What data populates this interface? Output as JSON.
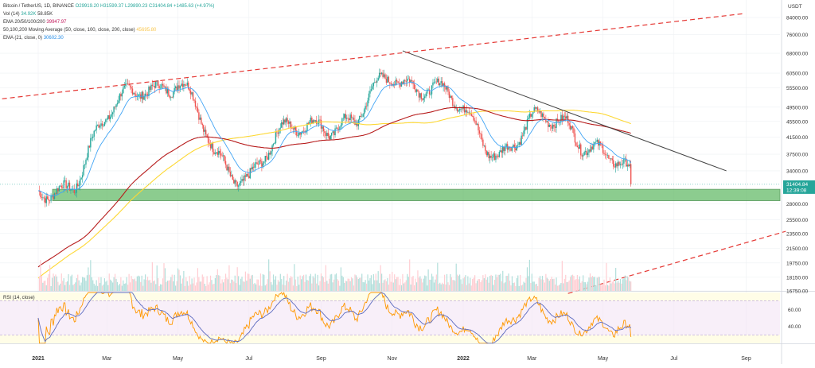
{
  "header": {
    "symbol_line": "Bitcoin / TetherUS, 1D, BINANCE",
    "ohlc": "O29919.20 H31599.37 L29890.23 C31404.84 +1485.63 (+4.97%)",
    "vol_label": "Vol (14)",
    "vol_value_1": "34.92K",
    "vol_value_2": "58.85K",
    "ema_label": "EMA 20/50/100/200",
    "ema_value": "39947.97",
    "ma_label": "50,100,200 Moving Average (50, close, 100, close, 200, close)",
    "ma_value": "45695.80",
    "ema21_label": "EMA (21, close, 0)",
    "ema21_value": "30602.30"
  },
  "chart_data": {
    "type": "line",
    "title": "Bitcoin / TetherUS, 1D, BINANCE",
    "price_axis_unit": "USDT",
    "price_axis_labels": [
      "84000.00",
      "76000.00",
      "68000.00",
      "60500.00",
      "55500.00",
      "49500.00",
      "45500.00",
      "41500.00",
      "37500.00",
      "34000.00",
      "31404.84",
      "12:39:08",
      "28000.00",
      "25500.00",
      "23500.00",
      "21500.00",
      "19750.00",
      "18150.00",
      "16750.00"
    ],
    "rsi_axis_labels": [
      "60.00",
      "40.00"
    ],
    "x_tick_labels": [
      "2021",
      "Mar",
      "May",
      "Jul",
      "Sep",
      "Nov",
      "2022",
      "Mar",
      "May",
      "Jul",
      "Sep"
    ],
    "last_price_label": "31404.84",
    "countdown_label": "12:39:08",
    "rsi_label": "RSI (14, close)",
    "monthly_close_approx": {
      "dates": [
        "2021-01-01",
        "2021-02-01",
        "2021-03-01",
        "2021-04-01",
        "2021-05-01",
        "2021-06-01",
        "2021-07-01",
        "2021-08-01",
        "2021-09-01",
        "2021-10-01",
        "2021-11-01",
        "2021-12-01",
        "2022-01-01",
        "2022-02-01",
        "2022-03-01",
        "2022-04-01",
        "2022-05-01",
        "2022-05-25"
      ],
      "values": [
        29000,
        33000,
        45000,
        58000,
        57000,
        37000,
        33500,
        41500,
        47000,
        44000,
        61000,
        57000,
        47000,
        38500,
        44000,
        45500,
        38000,
        31400
      ]
    },
    "support_zone": [
      28500,
      30500
    ],
    "descending_trendline_start": [
      "2021-11-10",
      69000
    ],
    "descending_trendline_end": [
      "2022-08-15",
      34000
    ],
    "channel_upper_start": [
      "2020-12-01",
      52000
    ],
    "channel_upper_end": [
      "2022-08-31",
      86000
    ],
    "channel_lower_start": [
      "2022-04-01",
      16500
    ],
    "channel_lower_end": [
      "2022-10-05",
      23800
    ],
    "grid": true,
    "legend_position": "top-left"
  },
  "colors": {
    "up": "#26a69a",
    "down": "#ef5350",
    "ema200": "#b71c1c",
    "ma": "#fdd835",
    "ema21": "#42a5f5",
    "zone": "#66bb6a",
    "trend": "#424242",
    "channel": "#e53935",
    "rsi": "#ff9800",
    "rsi_ma": "#5c6bc0"
  }
}
